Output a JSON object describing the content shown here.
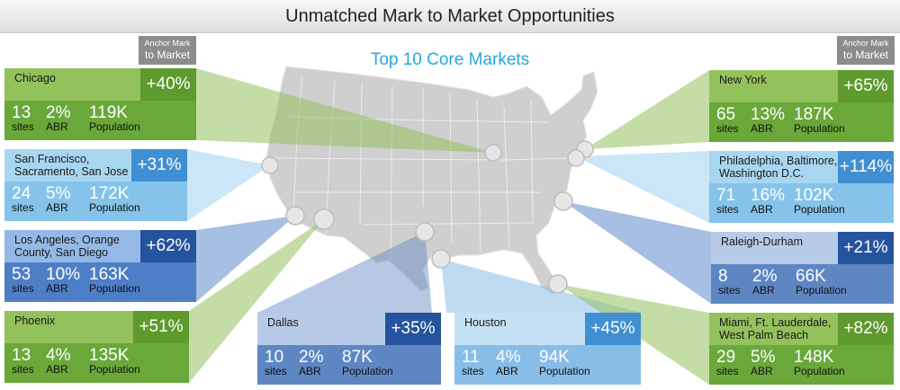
{
  "title": "Unmatched Mark to Market Opportunities",
  "subtitle": "Top 10 Core Markets",
  "anchor_tag": {
    "line1": "Anchor Mark",
    "line2": "to Market"
  },
  "units": {
    "sites": "sites",
    "abr": "ABR",
    "population": "Population"
  },
  "colors": {
    "green_accent": "#5e9a2d",
    "blue_accent": "#26539e",
    "title_blue": "#26a8dc",
    "map_gray": "#cfcfcf"
  },
  "markets": [
    {
      "name": "Chicago",
      "mark": "+40%",
      "sites": "13",
      "abr": "2%",
      "population": "119K",
      "theme": "green"
    },
    {
      "name": "San Francisco,\nSacramento, San Jose",
      "mark": "+31%",
      "sites": "24",
      "abr": "5%",
      "population": "172K",
      "theme": "lblue"
    },
    {
      "name": "Los Angeles, Orange\nCounty, San Diego",
      "mark": "+62%",
      "sites": "53",
      "abr": "10%",
      "population": "163K",
      "theme": "mblue"
    },
    {
      "name": "Phoenix",
      "mark": "+51%",
      "sites": "13",
      "abr": "4%",
      "population": "135K",
      "theme": "green"
    },
    {
      "name": "Dallas",
      "mark": "+35%",
      "sites": "10",
      "abr": "2%",
      "population": "87K",
      "theme": "dblue"
    },
    {
      "name": "Houston",
      "mark": "+45%",
      "sites": "11",
      "abr": "4%",
      "population": "94K",
      "theme": "hblue"
    },
    {
      "name": "New York",
      "mark": "+65%",
      "sites": "65",
      "abr": "13%",
      "population": "187K",
      "theme": "green"
    },
    {
      "name": "Philadelphia, Baltimore,\nWashington D.C.",
      "mark": "+114%",
      "sites": "71",
      "abr": "16%",
      "population": "102K",
      "theme": "lblue"
    },
    {
      "name": "Raleigh-Durham",
      "mark": "+21%",
      "sites": "8",
      "abr": "2%",
      "population": "66K",
      "theme": "dblue"
    },
    {
      "name": "Miami, Ft. Lauderdale,\nWest Palm Beach",
      "mark": "+82%",
      "sites": "29",
      "abr": "5%",
      "population": "148K",
      "theme": "green"
    }
  ]
}
